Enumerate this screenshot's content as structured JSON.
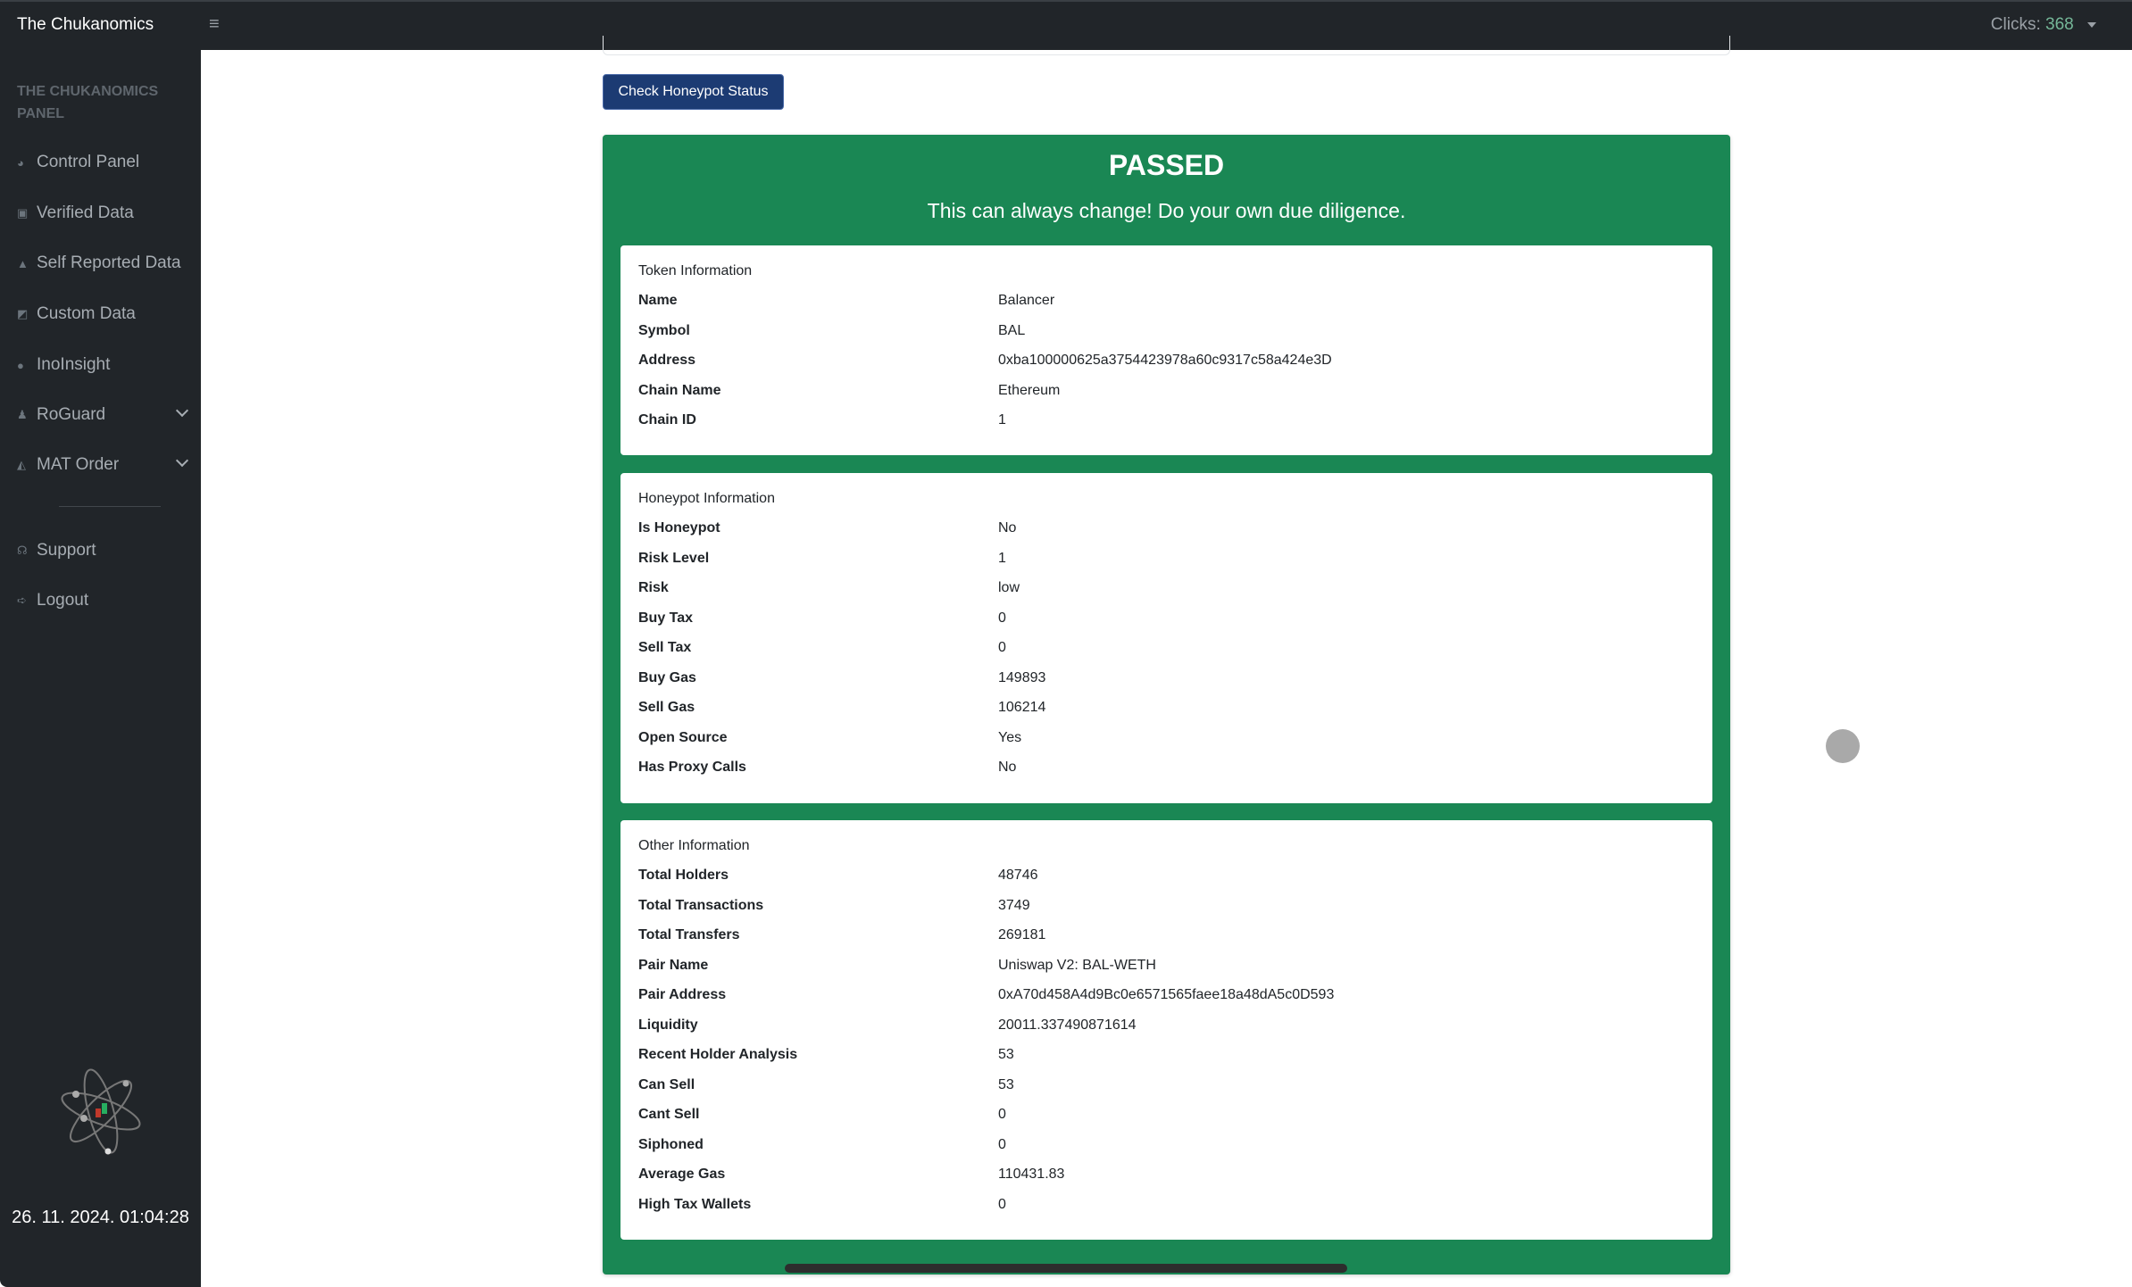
{
  "app": {
    "title": "The Chukanomics"
  },
  "header": {
    "clicks_label": "Clicks:",
    "clicks_value": "368"
  },
  "sidebar": {
    "heading": "THE CHUKANOMICS PANEL",
    "items": [
      {
        "label": "Control Panel",
        "icon": "dashboard-icon",
        "glyph": "◕"
      },
      {
        "label": "Verified Data",
        "icon": "check-square-icon",
        "glyph": "▣"
      },
      {
        "label": "Self Reported Data",
        "icon": "warning-icon",
        "glyph": "▲"
      },
      {
        "label": "Custom Data",
        "icon": "edit-square-icon",
        "glyph": "◩"
      },
      {
        "label": "InoInsight",
        "icon": "info-icon",
        "glyph": "●"
      },
      {
        "label": "RoGuard",
        "icon": "user-shield-icon",
        "glyph": "♟"
      },
      {
        "label": "MAT Order",
        "icon": "chart-area-icon",
        "glyph": "◭"
      }
    ],
    "bottom_items": [
      {
        "label": "Support",
        "icon": "headset-icon",
        "glyph": "☊"
      },
      {
        "label": "Logout",
        "icon": "logout-icon",
        "glyph": "➪"
      }
    ],
    "datetime": "26. 11. 2024. 01:04:28"
  },
  "main": {
    "check_button": "Check Honeypot Status",
    "status": "PASSED",
    "subtitle": "This can always change! Do your own due diligence.",
    "status_color": "#1a8754",
    "cards": [
      {
        "title": "Token Information",
        "rows": [
          [
            "Name",
            "Balancer"
          ],
          [
            "Symbol",
            "BAL"
          ],
          [
            "Address",
            "0xba100000625a3754423978a60c9317c58a424e3D"
          ],
          [
            "Chain Name",
            "Ethereum"
          ],
          [
            "Chain ID",
            "1"
          ]
        ]
      },
      {
        "title": "Honeypot Information",
        "rows": [
          [
            "Is Honeypot",
            "No"
          ],
          [
            "Risk Level",
            "1"
          ],
          [
            "Risk",
            "low"
          ],
          [
            "Buy Tax",
            "0"
          ],
          [
            "Sell Tax",
            "0"
          ],
          [
            "Buy Gas",
            "149893"
          ],
          [
            "Sell Gas",
            "106214"
          ],
          [
            "Open Source",
            "Yes"
          ],
          [
            "Has Proxy Calls",
            "No"
          ]
        ]
      },
      {
        "title": "Other Information",
        "rows": [
          [
            "Total Holders",
            "48746"
          ],
          [
            "Total Transactions",
            "3749"
          ],
          [
            "Total Transfers",
            "269181"
          ],
          [
            "Pair Name",
            "Uniswap V2: BAL-WETH"
          ],
          [
            "Pair Address",
            "0xA70d458A4d9Bc0e6571565faee18a48dA5c0D593"
          ],
          [
            "Liquidity",
            "20011.337490871614"
          ],
          [
            "Recent Holder Analysis",
            "53"
          ],
          [
            "Can Sell",
            "53"
          ],
          [
            "Cant Sell",
            "0"
          ],
          [
            "Siphoned",
            "0"
          ],
          [
            "Average Gas",
            "110431.83"
          ],
          [
            "High Tax Wallets",
            "0"
          ]
        ]
      }
    ]
  }
}
